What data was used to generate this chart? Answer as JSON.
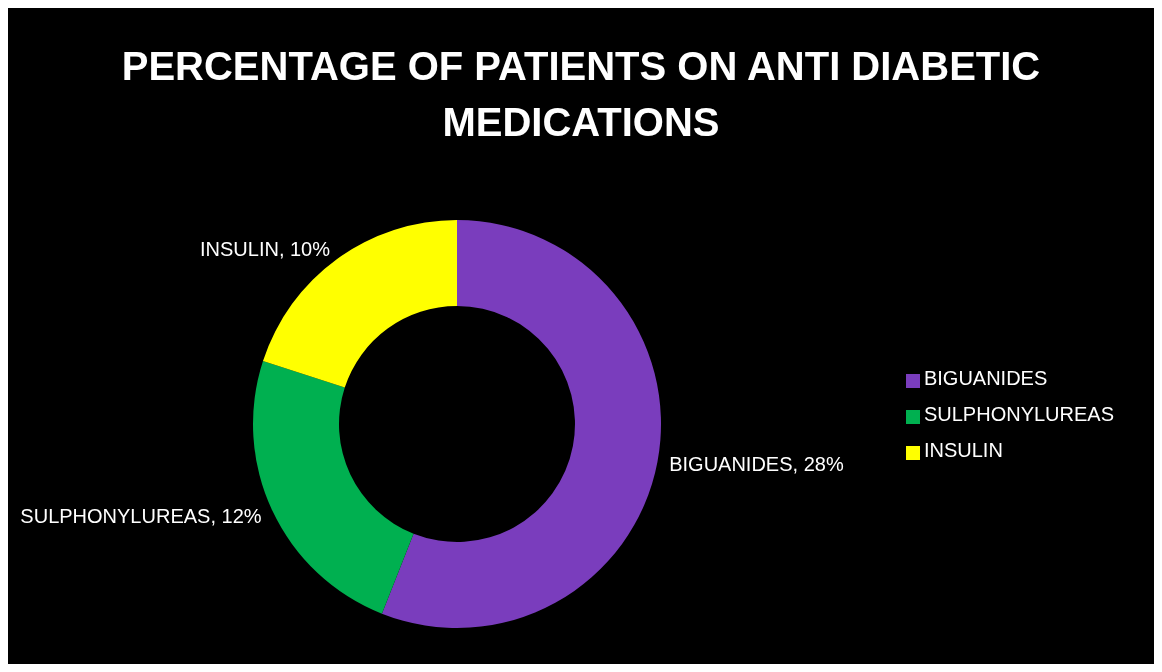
{
  "chart_data": {
    "type": "donut",
    "title": "PERCENTAGE OF PATIENTS ON ANTI DIABETIC MEDICATIONS",
    "categories": [
      "BIGUANIDES",
      "SULPHONYLUREAS",
      "INSULIN"
    ],
    "values": [
      28,
      12,
      10
    ],
    "colors": [
      "#7a3dbd",
      "#00b050",
      "#ffff00"
    ],
    "value_labels": [
      "BIGUANIDES, 28%",
      "SULPHONYLUREAS, 12%",
      "INSULIN, 10%"
    ],
    "legend": "right"
  }
}
